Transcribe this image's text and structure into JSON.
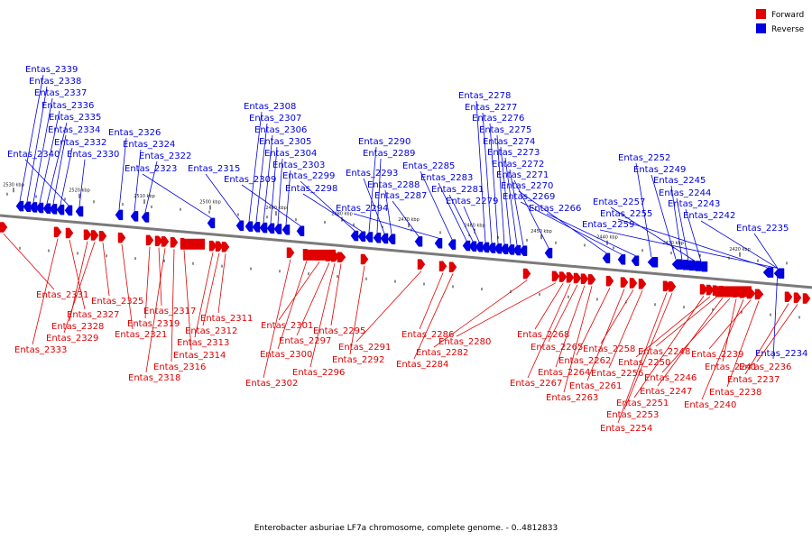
{
  "title": "Enterobacter asburiae LF7a chromosome, complete genome. - 0..4812833",
  "legend": [
    {
      "label": "Forward",
      "color": "#e00000"
    },
    {
      "label": "Reverse",
      "color": "#0000e0"
    }
  ],
  "colors": {
    "forward": "#e00000",
    "reverse": "#0000e0",
    "backbone": "#7a7a7a"
  },
  "chart_data": {
    "type": "genome-map",
    "ticks": [
      "2530 kbp",
      "2520 kbp",
      "2510 kbp",
      "2500 kbp",
      "2490 kbp",
      "2480 kbp",
      "2470 kbp",
      "2460 kbp",
      "2450 kbp",
      "2440 kbp",
      "2430 kbp",
      "2420 kbp"
    ],
    "forward": [
      "Entas_2331",
      "Entas_2333",
      "Entas_2327",
      "Entas_2328",
      "Entas_2329",
      "Entas_2325",
      "Entas_2321",
      "Entas_2319",
      "Entas_2317",
      "Entas_2318",
      "Entas_2316",
      "Entas_2314",
      "Entas_2313",
      "Entas_2312",
      "Entas_2311",
      "Entas_2302",
      "Entas_2300",
      "Entas_2301",
      "Entas_2297",
      "Entas_2296",
      "Entas_2295",
      "Entas_2292",
      "Entas_2291",
      "Entas_2286",
      "Entas_2284",
      "Entas_2282",
      "Entas_2280",
      "Entas_2268",
      "Entas_2267",
      "Entas_2265",
      "Entas_2264",
      "Entas_2263",
      "Entas_2262",
      "Entas_2261",
      "Entas_2258",
      "Entas_2256",
      "Entas_2254",
      "Entas_2253",
      "Entas_2251",
      "Entas_2250",
      "Entas_2248",
      "Entas_2247",
      "Entas_2246",
      "Entas_2241",
      "Entas_2240",
      "Entas_2239",
      "Entas_2238",
      "Entas_2237",
      "Entas_2236"
    ],
    "reverse": [
      "Entas_2339",
      "Entas_2338",
      "Entas_2337",
      "Entas_2336",
      "Entas_2335",
      "Entas_2334",
      "Entas_2332",
      "Entas_2340",
      "Entas_2330",
      "Entas_2326",
      "Entas_2324",
      "Entas_2322",
      "Entas_2323",
      "Entas_2315",
      "Entas_2308",
      "Entas_2307",
      "Entas_2306",
      "Entas_2305",
      "Entas_2304",
      "Entas_2303",
      "Entas_2309",
      "Entas_2299",
      "Entas_2298",
      "Entas_2290",
      "Entas_2289",
      "Entas_2293",
      "Entas_2288",
      "Entas_2287",
      "Entas_2294",
      "Entas_2285",
      "Entas_2283",
      "Entas_2281",
      "Entas_2279",
      "Entas_2278",
      "Entas_2277",
      "Entas_2276",
      "Entas_2275",
      "Entas_2274",
      "Entas_2273",
      "Entas_2272",
      "Entas_2271",
      "Entas_2270",
      "Entas_2269",
      "Entas_2266",
      "Entas_2252",
      "Entas_2249",
      "Entas_2245",
      "Entas_2244",
      "Entas_2257",
      "Entas_2243",
      "Entas_2255",
      "Entas_2242",
      "Entas_2259",
      "Entas_2235",
      "Entas_2234"
    ]
  }
}
